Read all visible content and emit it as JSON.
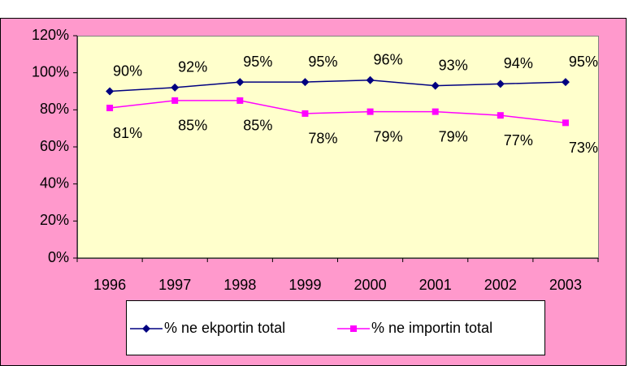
{
  "chart_data": {
    "type": "line",
    "categories": [
      "1996",
      "1997",
      "1998",
      "1999",
      "2000",
      "2001",
      "2002",
      "2003"
    ],
    "series": [
      {
        "name": "% ne ekportin total",
        "color": "#000080",
        "marker": "diamond",
        "values": [
          90,
          92,
          95,
          95,
          96,
          93,
          94,
          95
        ],
        "value_labels": [
          "90%",
          "92%",
          "95%",
          "95%",
          "96%",
          "93%",
          "94%",
          "95%"
        ],
        "label_position": "above"
      },
      {
        "name": "% ne importin total",
        "color": "#ff00ff",
        "marker": "square",
        "values": [
          81,
          85,
          85,
          78,
          79,
          79,
          77,
          73
        ],
        "value_labels": [
          "81%",
          "85%",
          "85%",
          "78%",
          "79%",
          "79%",
          "77%",
          "73%"
        ],
        "label_position": "below"
      }
    ],
    "ylim": [
      0,
      120
    ],
    "yticks": [
      {
        "value": 0,
        "label": "0%"
      },
      {
        "value": 20,
        "label": "20%"
      },
      {
        "value": 40,
        "label": "40%"
      },
      {
        "value": 60,
        "label": "60%"
      },
      {
        "value": 80,
        "label": "80%"
      },
      {
        "value": 100,
        "label": "100%"
      },
      {
        "value": 120,
        "label": "120%"
      }
    ],
    "legend": "bottom"
  }
}
